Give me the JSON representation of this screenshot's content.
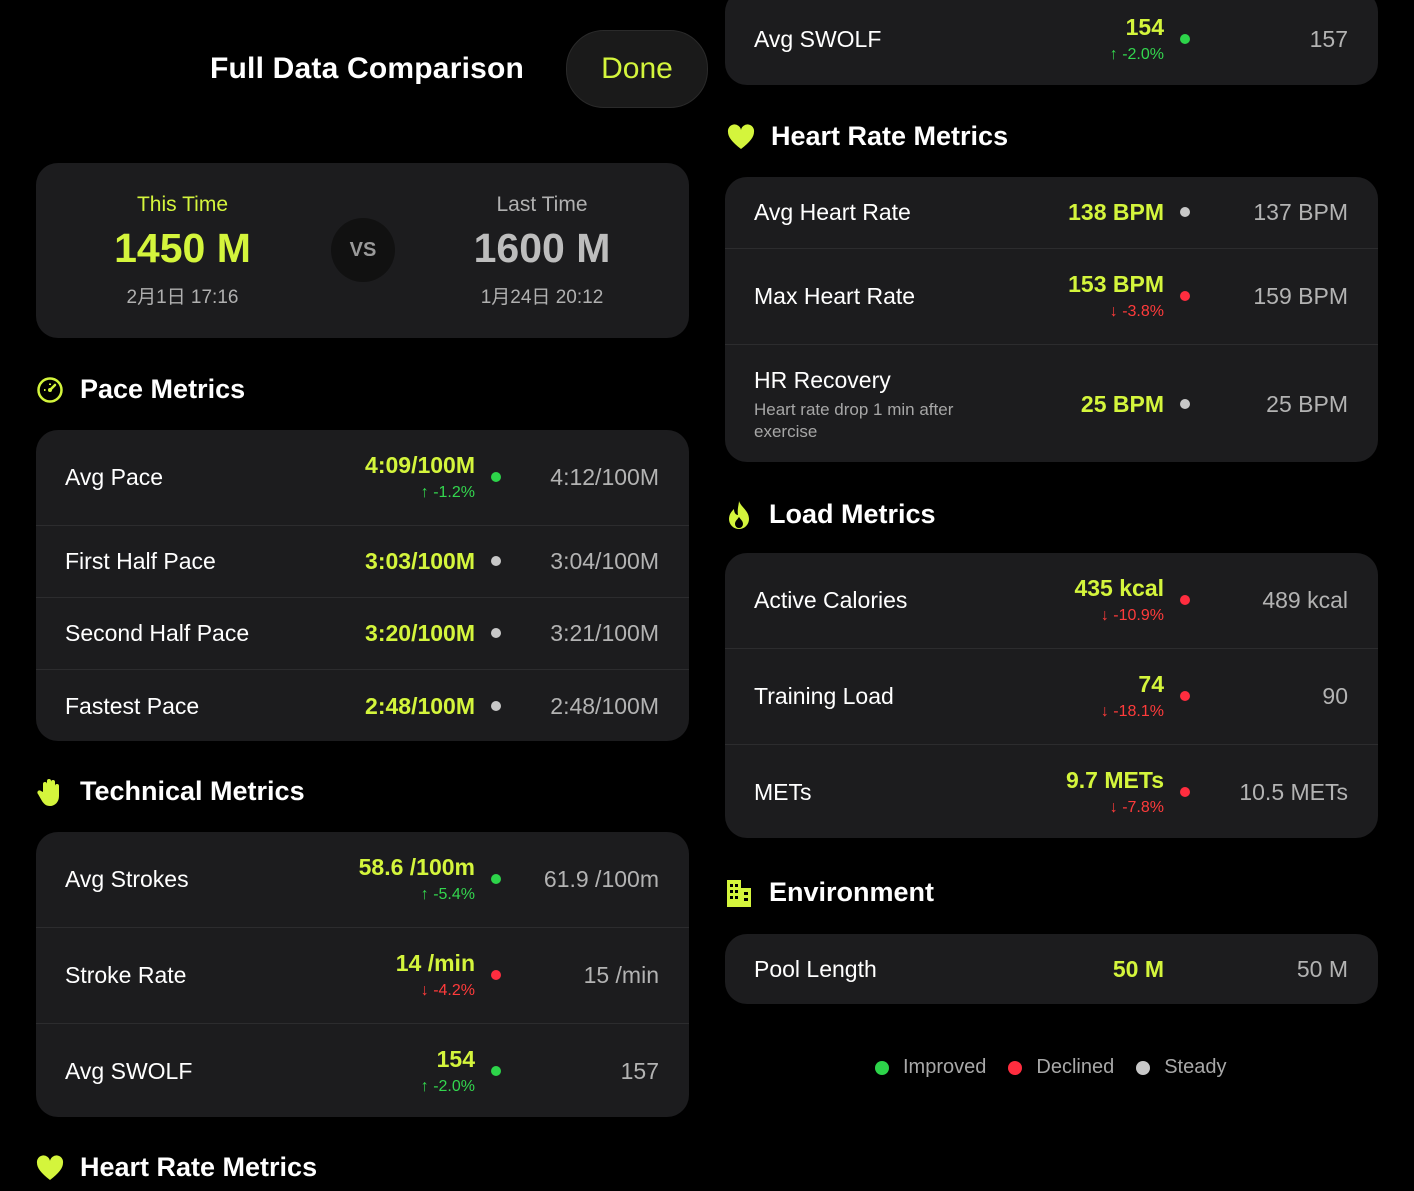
{
  "header": {
    "title": "Full Data Comparison",
    "done_label": "Done"
  },
  "summary": {
    "this": {
      "label": "This Time",
      "value": "1450 M",
      "date": "2月1日 17:16"
    },
    "vs": "VS",
    "last": {
      "label": "Last Time",
      "value": "1600 M",
      "date": "1月24日 20:12"
    }
  },
  "sections": {
    "pace": {
      "title": "Pace Metrics",
      "rows": [
        {
          "name": "Avg Pace",
          "current": "4:09/100M",
          "delta": "↑ -1.2%",
          "status": "improved",
          "previous": "4:12/100M"
        },
        {
          "name": "First Half Pace",
          "current": "3:03/100M",
          "status": "steady",
          "previous": "3:04/100M"
        },
        {
          "name": "Second Half Pace",
          "current": "3:20/100M",
          "status": "steady",
          "previous": "3:21/100M"
        },
        {
          "name": "Fastest Pace",
          "current": "2:48/100M",
          "status": "steady",
          "previous": "2:48/100M"
        }
      ]
    },
    "technical": {
      "title": "Technical Metrics",
      "rows": [
        {
          "name": "Avg Strokes",
          "current": "58.6 /100m",
          "delta": "↑ -5.4%",
          "status": "improved",
          "previous": "61.9 /100m"
        },
        {
          "name": "Stroke Rate",
          "current": "14 /min",
          "delta": "↓ -4.2%",
          "status": "declined",
          "previous": "15 /min"
        },
        {
          "name": "Avg SWOLF",
          "current": "154",
          "delta": "↑ -2.0%",
          "status": "improved",
          "previous": "157"
        }
      ]
    },
    "heart": {
      "title": "Heart Rate Metrics",
      "rows": [
        {
          "name": "Avg Heart Rate",
          "current": "138 BPM",
          "status": "steady",
          "previous": "137 BPM"
        },
        {
          "name": "Max Heart Rate",
          "current": "153 BPM",
          "delta": "↓ -3.8%",
          "status": "declined",
          "previous": "159 BPM"
        },
        {
          "name": "HR Recovery",
          "subtitle": "Heart rate drop 1 min after exercise",
          "current": "25 BPM",
          "status": "steady",
          "previous": "25 BPM"
        }
      ]
    },
    "load": {
      "title": "Load Metrics",
      "rows": [
        {
          "name": "Active Calories",
          "current": "435 kcal",
          "delta": "↓ -10.9%",
          "status": "declined",
          "previous": "489 kcal"
        },
        {
          "name": "Training Load",
          "current": "74",
          "delta": "↓ -18.1%",
          "status": "declined",
          "previous": "90"
        },
        {
          "name": "METs",
          "current": "9.7 METs",
          "delta": "↓ -7.8%",
          "status": "declined",
          "previous": "10.5 METs"
        }
      ]
    },
    "environment": {
      "title": "Environment",
      "rows": [
        {
          "name": "Pool Length",
          "current": "50 M",
          "previous": "50 M"
        }
      ]
    }
  },
  "legend": {
    "improved": "Improved",
    "declined": "Declined",
    "steady": "Steady"
  },
  "colors": {
    "accent": "#d4f53c",
    "improved": "#2dd44a",
    "declined": "#ff2d3f",
    "steady": "#c8c8c8",
    "card": "#1c1c1e"
  }
}
